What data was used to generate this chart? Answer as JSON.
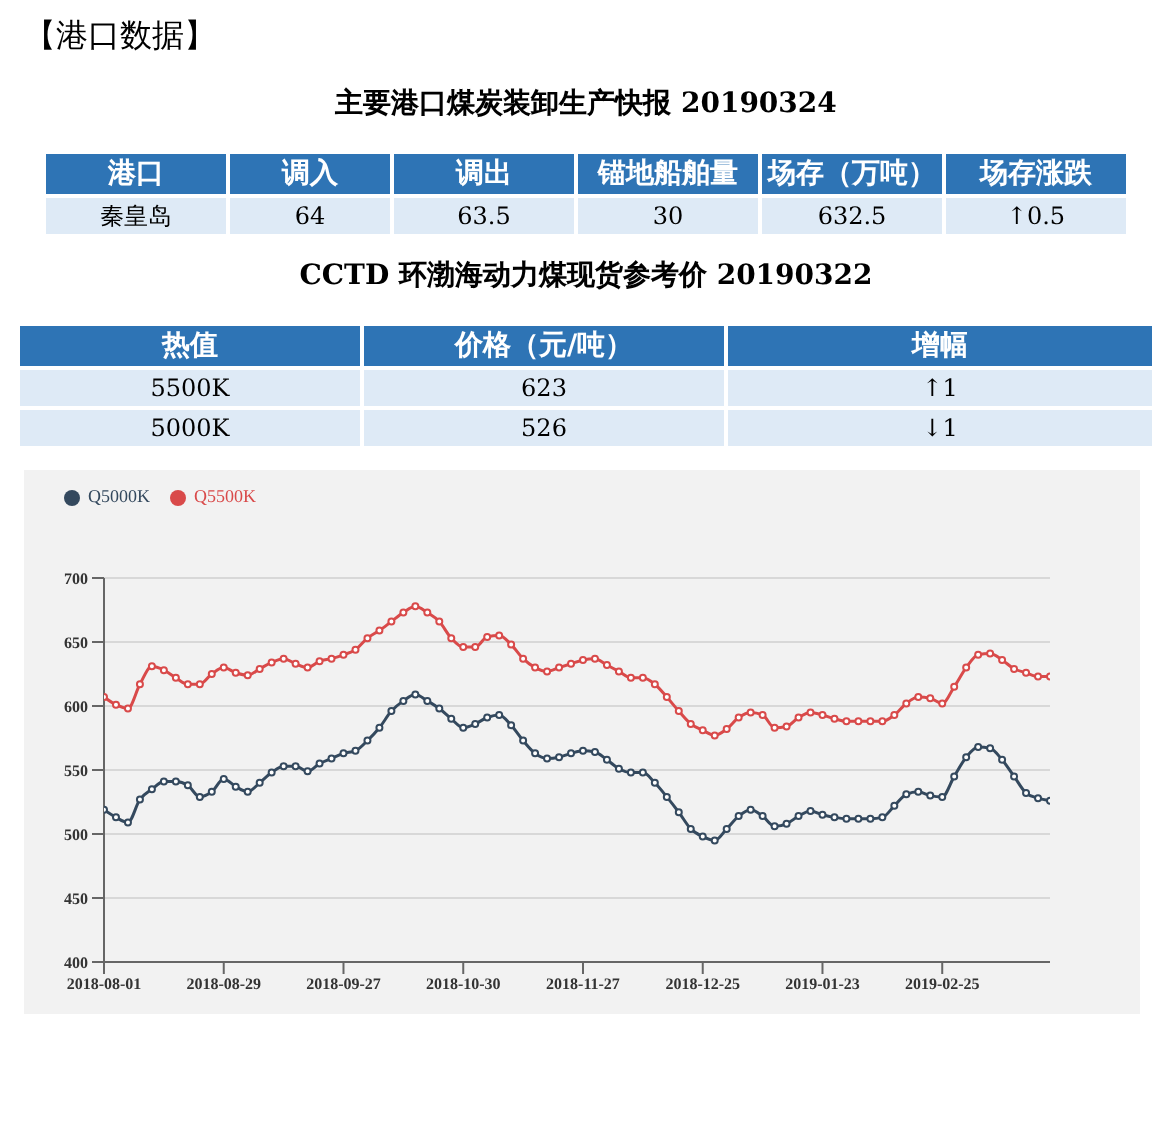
{
  "chart_data": [
    {
      "type": "other",
      "annotations": [
        "【港口数据】"
      ],
      "title": "主要港口煤炭装卸生产快报 20190324",
      "categories": [
        "港口",
        "调入",
        "调出",
        "锚地船舶量",
        "场存（万吨）",
        "场存涨跌"
      ],
      "cell_labels": [
        [
          "秦皇岛",
          "64",
          "63.5",
          "30",
          "632.5",
          "↑0.5"
        ]
      ]
    },
    {
      "type": "other",
      "title": "CCTD 环渤海动力煤现货参考价 20190322",
      "categories": [
        "热值",
        "价格（元/吨）",
        "增幅"
      ],
      "cell_labels": [
        [
          "5500K",
          "623",
          "↑1"
        ],
        [
          "5000K",
          "526",
          "↓1"
        ]
      ]
    },
    {
      "type": "line",
      "categories": [
        "2018-08-01",
        null,
        null,
        null,
        null,
        null,
        null,
        null,
        null,
        null,
        "2018-08-29",
        null,
        null,
        null,
        null,
        null,
        null,
        null,
        null,
        null,
        "2018-09-27",
        null,
        null,
        null,
        null,
        null,
        null,
        null,
        null,
        null,
        "2018-10-30",
        null,
        null,
        null,
        null,
        null,
        null,
        null,
        null,
        null,
        "2018-11-27",
        null,
        null,
        null,
        null,
        null,
        null,
        null,
        null,
        null,
        "2018-12-25",
        null,
        null,
        null,
        null,
        null,
        null,
        null,
        null,
        null,
        "2019-01-23",
        null,
        null,
        null,
        null,
        null,
        null,
        null,
        null,
        null,
        "2019-02-25",
        null,
        null,
        null,
        null,
        null,
        null,
        null,
        null,
        null
      ],
      "ylim": [
        400,
        700
      ],
      "yticks": [
        400,
        450,
        500,
        550,
        600,
        650,
        700
      ],
      "grid": "y",
      "legend": "top left",
      "marker": "circle",
      "line_style": "solid",
      "series": [
        {
          "name": "Q5500K",
          "color": "#d94a4a",
          "values": [
            607,
            601,
            598,
            617,
            631,
            628,
            622,
            617,
            617,
            625,
            630,
            626,
            624,
            629,
            634,
            637,
            633,
            630,
            635,
            637,
            640,
            644,
            653,
            659,
            666,
            673,
            678,
            673,
            666,
            653,
            646,
            646,
            654,
            655,
            648,
            637,
            630,
            627,
            630,
            633,
            636,
            637,
            632,
            627,
            622,
            622,
            617,
            607,
            596,
            586,
            581,
            577,
            582,
            591,
            595,
            593,
            583,
            584,
            591,
            595,
            593,
            590,
            588,
            588,
            588,
            588,
            593,
            602,
            607,
            606,
            602,
            615,
            630,
            640,
            641,
            636,
            629,
            626,
            623,
            623
          ]
        },
        {
          "name": "Q5000K",
          "color": "#34495e",
          "values": [
            519,
            513,
            509,
            527,
            535,
            541,
            541,
            538,
            529,
            533,
            543,
            537,
            533,
            540,
            548,
            553,
            553,
            549,
            555,
            559,
            563,
            565,
            573,
            583,
            596,
            604,
            609,
            604,
            598,
            590,
            583,
            586,
            591,
            593,
            585,
            573,
            563,
            559,
            560,
            563,
            565,
            564,
            558,
            551,
            548,
            548,
            540,
            529,
            517,
            504,
            498,
            495,
            504,
            514,
            519,
            514,
            506,
            508,
            514,
            518,
            515,
            513,
            512,
            512,
            512,
            513,
            522,
            531,
            533,
            530,
            529,
            545,
            560,
            568,
            567,
            558,
            545,
            532,
            528,
            526
          ]
        }
      ]
    }
  ]
}
